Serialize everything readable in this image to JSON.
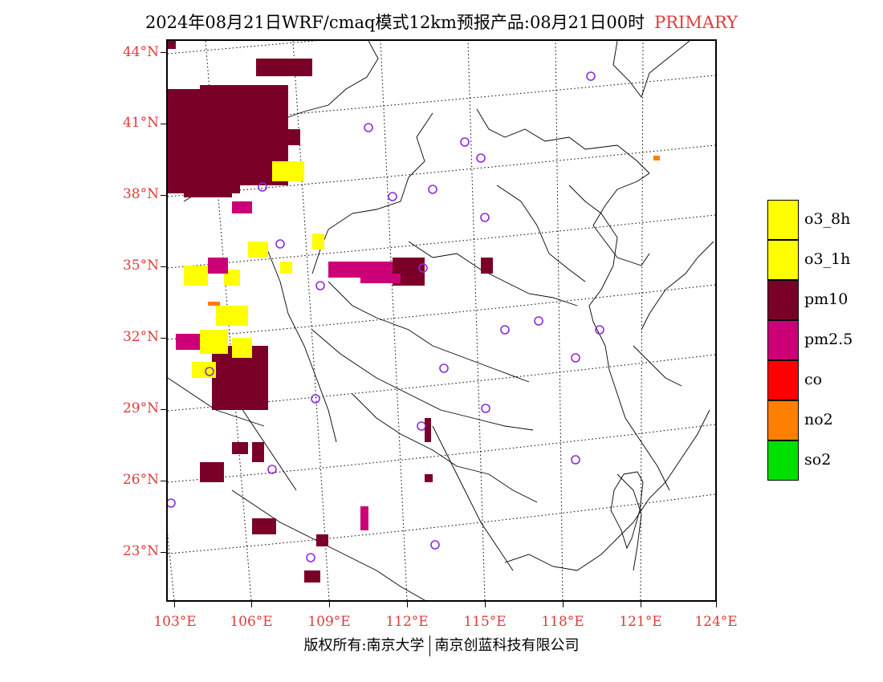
{
  "title": {
    "main": "2024年08月21日WRF/cmaq模式12km预报产品:08月21日00时",
    "tag": "PRIMARY",
    "tag_color": "#e03b3b"
  },
  "axes": {
    "lat_labels": [
      "44°N",
      "41°N",
      "38°N",
      "35°N",
      "32°N",
      "29°N",
      "26°N",
      "23°N"
    ],
    "lon_labels": [
      "103°E",
      "106°E",
      "109°E",
      "112°E",
      "115°E",
      "118°E",
      "121°E",
      "124°E"
    ],
    "label_color": "#e03b3b"
  },
  "legend": [
    {
      "label": "o3_8h",
      "color": "#ffff00"
    },
    {
      "label": "o3_1h",
      "color": "#ffff00"
    },
    {
      "label": "pm10",
      "color": "#7a0028"
    },
    {
      "label": "pm2.5",
      "color": "#cc0077"
    },
    {
      "label": "co",
      "color": "#ff0000"
    },
    {
      "label": "no2",
      "color": "#ff7f00"
    },
    {
      "label": "so2",
      "color": "#00e000"
    }
  ],
  "copyright": {
    "left": "版权所有:南京大学",
    "right": "南京创蓝科技有限公司"
  }
}
